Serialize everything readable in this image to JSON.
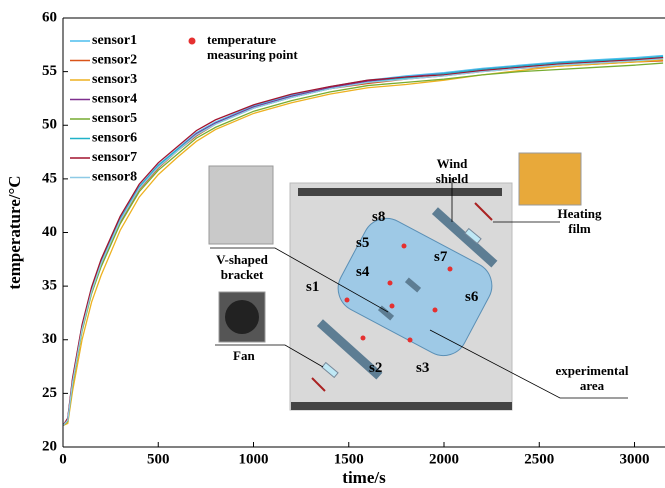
{
  "chart_data": {
    "type": "line",
    "x_label": "time/s",
    "y_label": "temperature/°C",
    "x": [
      0,
      25,
      50,
      100,
      150,
      200,
      300,
      400,
      500,
      600,
      700,
      800,
      1000,
      1200,
      1400,
      1600,
      1800,
      2000,
      2200,
      2400,
      2600,
      2800,
      3000,
      3150
    ],
    "series": [
      {
        "name": "sensor1",
        "color": "#4dbeee",
        "values": [
          22,
          22.6,
          26.3,
          31.3,
          34.8,
          37.3,
          41.3,
          44.3,
          46.3,
          47.8,
          49.3,
          50.3,
          51.8,
          52.8,
          53.6,
          54.2,
          54.6,
          54.9,
          55.3,
          55.6,
          55.9,
          56.1,
          56.3,
          56.5
        ]
      },
      {
        "name": "sensor2",
        "color": "#d95319",
        "values": [
          22,
          22.5,
          26,
          31,
          34.5,
          37,
          41,
          44,
          46,
          47.6,
          49,
          50.1,
          51.6,
          52.6,
          53.4,
          53.9,
          54.3,
          54.6,
          55,
          55.3,
          55.5,
          55.7,
          55.9,
          56
        ]
      },
      {
        "name": "sensor3",
        "color": "#edb120",
        "values": [
          22,
          22.2,
          25.2,
          30,
          33.5,
          36,
          40.2,
          43.3,
          45.4,
          47,
          48.5,
          49.6,
          51.1,
          52.1,
          52.9,
          53.5,
          53.8,
          54.2,
          54.7,
          55.1,
          55.5,
          55.7,
          55.9,
          56.1
        ]
      },
      {
        "name": "sensor4",
        "color": "#7e2f8e",
        "values": [
          22,
          22.5,
          26.1,
          31.1,
          34.6,
          37.2,
          41.2,
          44.2,
          46.2,
          47.7,
          49.2,
          50.2,
          51.7,
          52.7,
          53.5,
          54.1,
          54.5,
          54.8,
          55.2,
          55.5,
          55.8,
          56,
          56.1,
          56.3
        ]
      },
      {
        "name": "sensor5",
        "color": "#77ac30",
        "values": [
          22,
          22.4,
          25.8,
          30.8,
          34.3,
          36.8,
          40.8,
          43.8,
          45.8,
          47.3,
          48.8,
          49.8,
          51.3,
          52.3,
          53.1,
          53.7,
          54,
          54.3,
          54.7,
          55,
          55.2,
          55.4,
          55.6,
          55.8
        ]
      },
      {
        "name": "sensor6",
        "color": "#20b2c8",
        "values": [
          22,
          22.6,
          26.2,
          31.2,
          34.7,
          37.2,
          41.2,
          44.2,
          46.2,
          47.7,
          49.1,
          50.1,
          51.6,
          52.6,
          53.4,
          54,
          54.4,
          54.8,
          55.2,
          55.5,
          55.8,
          56,
          56.2,
          56.4
        ]
      },
      {
        "name": "sensor7",
        "color": "#a2142f",
        "values": [
          22,
          22.7,
          26.4,
          31.4,
          34.9,
          37.5,
          41.5,
          44.5,
          46.5,
          48,
          49.5,
          50.5,
          51.9,
          52.9,
          53.6,
          54.2,
          54.5,
          54.7,
          55.1,
          55.4,
          55.7,
          55.9,
          56.1,
          56.3
        ]
      },
      {
        "name": "sensor8",
        "color": "#8ecae6",
        "values": [
          22,
          22.5,
          26,
          31,
          34.5,
          37.1,
          41.1,
          44.1,
          46.1,
          47.6,
          49.1,
          50.1,
          51.6,
          52.6,
          53.4,
          54,
          54.3,
          54.6,
          55,
          55.3,
          55.6,
          55.8,
          56,
          56.2
        ]
      }
    ],
    "xlim": [
      0,
      3160
    ],
    "ylim": [
      20,
      60
    ],
    "xticks": [
      0,
      500,
      1000,
      1500,
      2000,
      2500,
      3000
    ],
    "yticks": [
      20,
      25,
      30,
      35,
      40,
      45,
      50,
      55,
      60
    ],
    "legend": "upper-left",
    "annotations": [
      "temperature measuring point",
      "s1",
      "s2",
      "s3",
      "s4",
      "s5",
      "s6",
      "s7",
      "s8",
      "Wind shield",
      "Heating film",
      "V-shaped bracket",
      "Fan",
      "experimental area"
    ]
  }
}
